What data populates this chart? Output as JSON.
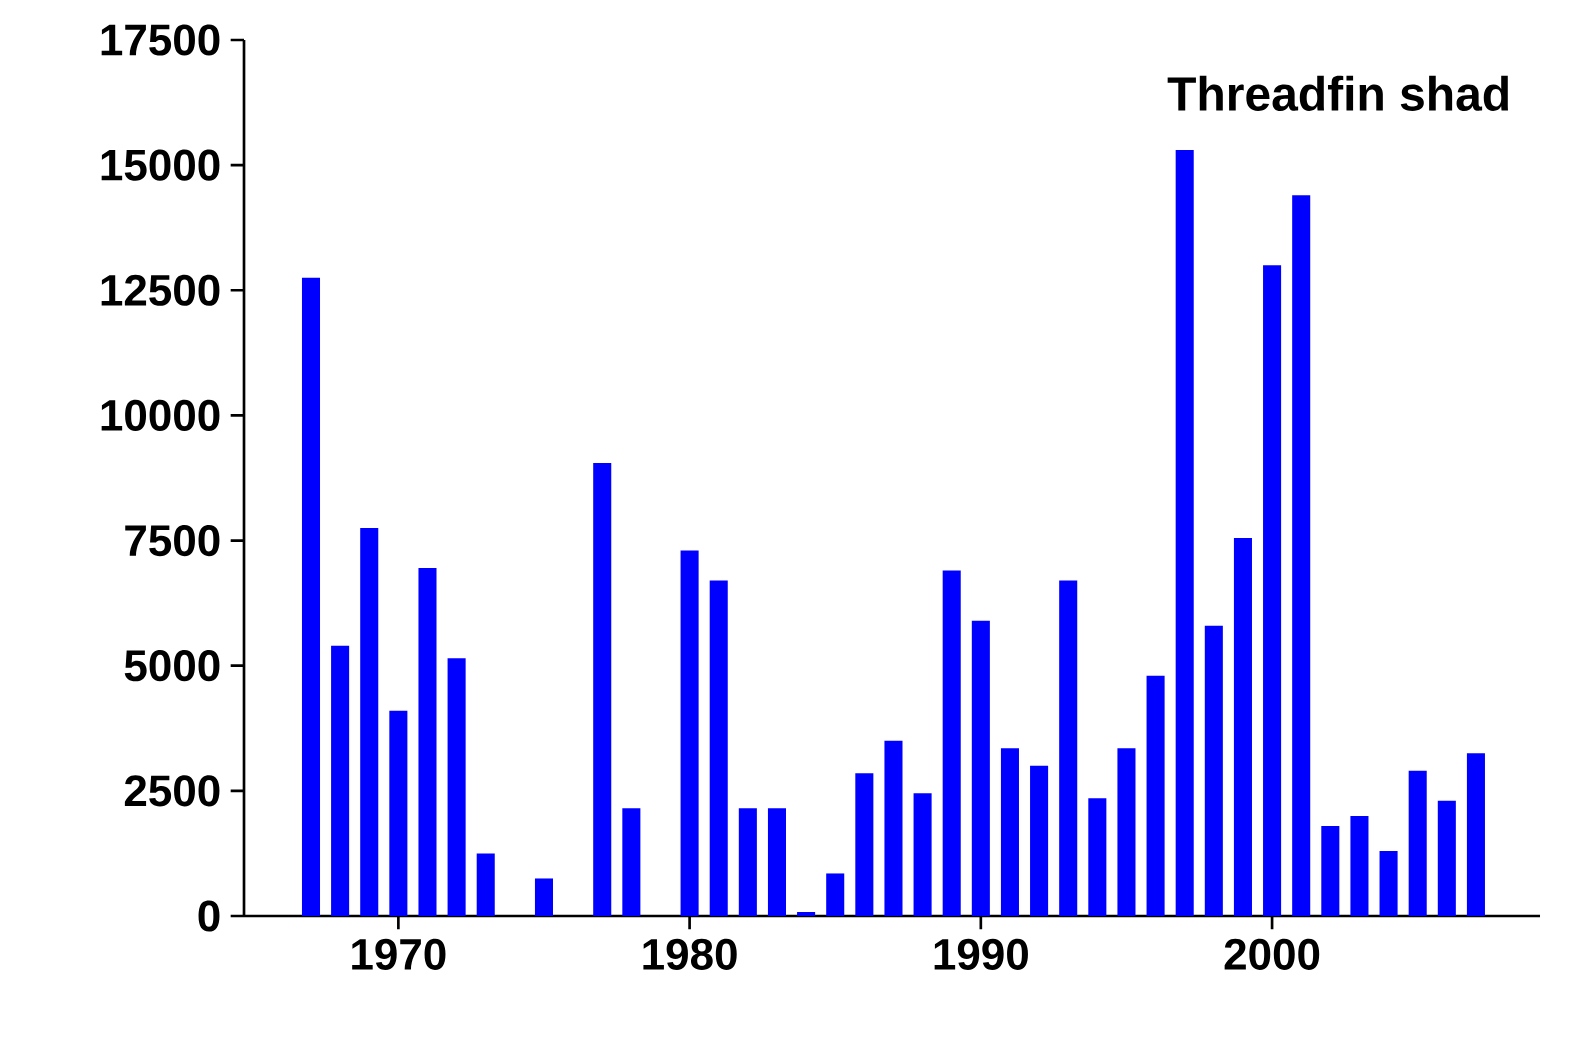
{
  "chart_data": {
    "type": "bar",
    "title": "Threadfin shad",
    "color": "#0000ff",
    "x": [
      1967,
      1968,
      1969,
      1970,
      1971,
      1972,
      1973,
      1974,
      1975,
      1976,
      1977,
      1978,
      1979,
      1980,
      1981,
      1982,
      1983,
      1984,
      1985,
      1986,
      1987,
      1988,
      1989,
      1990,
      1991,
      1992,
      1993,
      1994,
      1995,
      1996,
      1997,
      1998,
      1999,
      2000,
      2001,
      2002,
      2003,
      2004,
      2005,
      2006,
      2007
    ],
    "values": [
      12750,
      5400,
      7750,
      4100,
      6950,
      5150,
      1250,
      null,
      750,
      null,
      9050,
      2150,
      null,
      7300,
      6700,
      2150,
      2150,
      80,
      850,
      2850,
      3500,
      2450,
      6900,
      5900,
      3350,
      3000,
      6700,
      2350,
      3350,
      4800,
      15300,
      5800,
      7550,
      13000,
      14400,
      1800,
      2000,
      1300,
      2900,
      2300,
      3250
    ],
    "xlim": [
      1964.7,
      2009.2
    ],
    "xticks": [
      1970,
      1980,
      1990,
      2000
    ],
    "ylim": [
      0,
      17500
    ],
    "yticks": [
      0,
      2500,
      5000,
      7500,
      10000,
      12500,
      15000,
      17500
    ],
    "grid": false
  }
}
